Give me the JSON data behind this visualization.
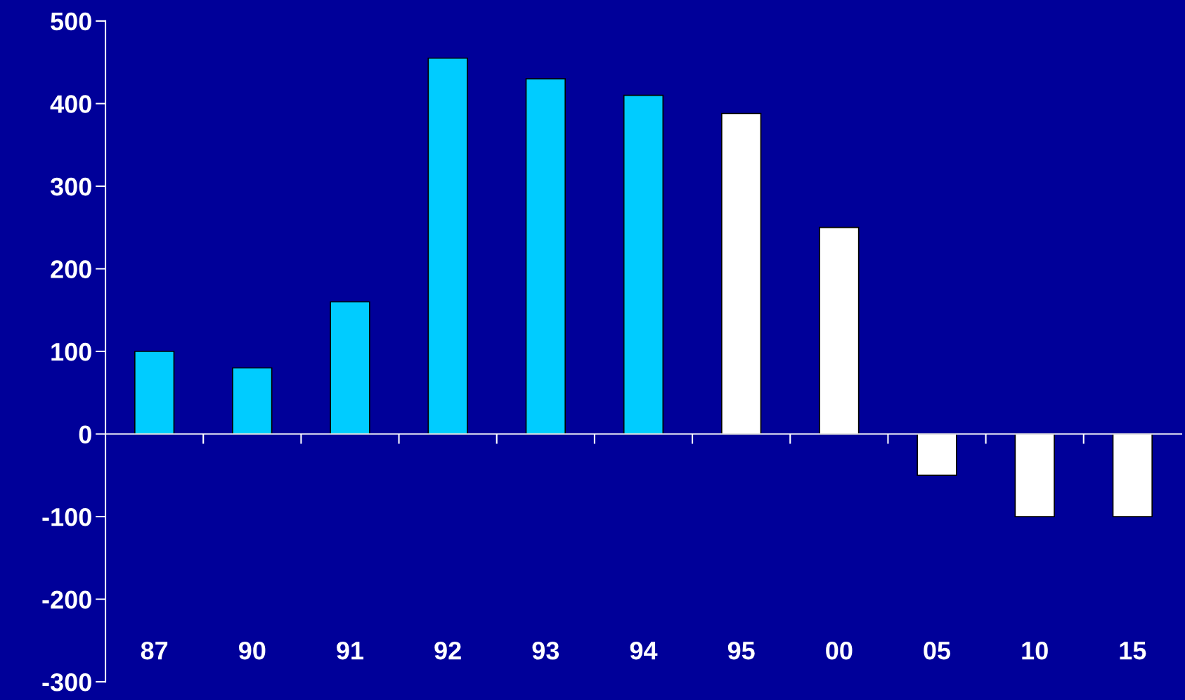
{
  "chart_data": {
    "type": "bar",
    "categories": [
      "87",
      "90",
      "91",
      "92",
      "93",
      "94",
      "95",
      "00",
      "05",
      "10",
      "15"
    ],
    "values": [
      100,
      80,
      160,
      455,
      430,
      410,
      388,
      250,
      -50,
      -100,
      -100
    ],
    "colors": [
      "#00ccff",
      "#00ccff",
      "#00ccff",
      "#00ccff",
      "#00ccff",
      "#00ccff",
      "#ffffff",
      "#ffffff",
      "#ffffff",
      "#ffffff",
      "#ffffff"
    ],
    "ylim": [
      -300,
      500
    ],
    "yticks": [
      -300,
      -200,
      -100,
      0,
      100,
      200,
      300,
      400,
      500
    ],
    "legend": false
  }
}
